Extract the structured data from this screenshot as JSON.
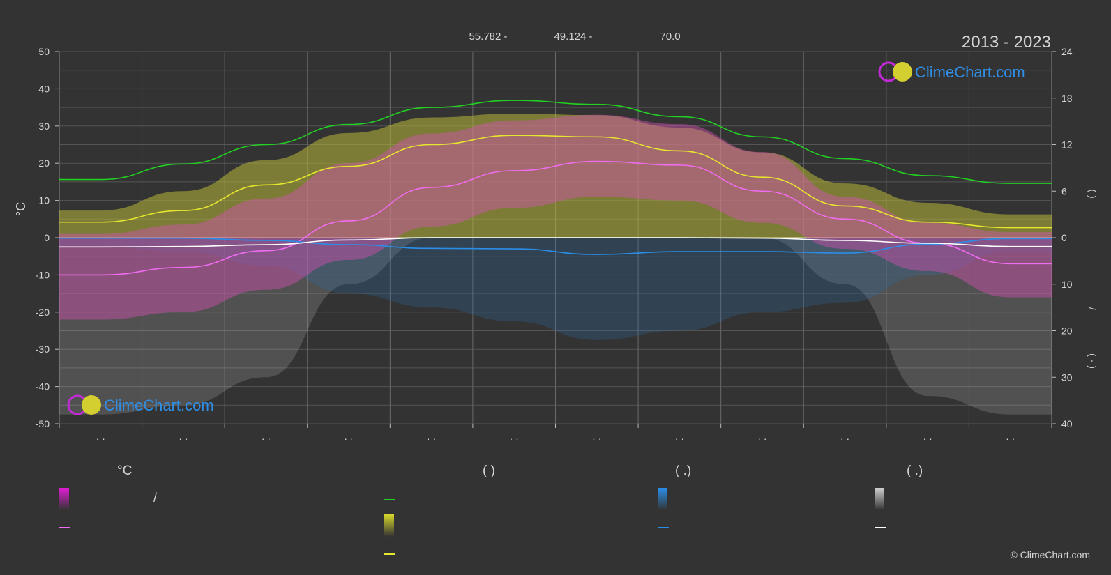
{
  "header": {
    "period": "2013 - 2023",
    "coords": [
      "55.782 -",
      "49.124 -",
      "70.0"
    ]
  },
  "brand": {
    "name": "ClimeChart.com",
    "copyright": "© ClimeChart.com"
  },
  "axes": {
    "left_label": "°C",
    "left_ticks": [
      "50",
      "40",
      "30",
      "20",
      "10",
      "0",
      "-10",
      "-20",
      "-30",
      "-40",
      "-50"
    ],
    "right_top_ticks": [
      "24",
      "18",
      "12",
      "6",
      "0"
    ],
    "right_bottom_ticks": [
      "10",
      "20",
      "30",
      "40"
    ],
    "right_top_label": "(   )",
    "right_mid_label": "/",
    "right_bottom_label": "( · )",
    "month_labels": [
      "· ·",
      "· ·",
      "· ·",
      "· ·",
      "· ·",
      "· ·",
      "· ·",
      "· ·",
      "· ·",
      "· ·",
      "· ·",
      "· ·"
    ]
  },
  "legend": {
    "groups": [
      {
        "title": "°C",
        "items": [
          {
            "kind": "band",
            "color": "#e21cd6",
            "label": "/"
          },
          {
            "kind": "line",
            "color": "#f06cf0",
            "label": ""
          }
        ]
      },
      {
        "title": "(          )",
        "items": [
          {
            "kind": "line",
            "color": "#22d022",
            "label": ""
          },
          {
            "kind": "band",
            "color": "#d8d82a",
            "label": ""
          },
          {
            "kind": "line",
            "color": "#e6e62e",
            "label": ""
          }
        ]
      },
      {
        "title": "(   .)",
        "items": [
          {
            "kind": "band",
            "color": "#2a8ee8",
            "label": ""
          },
          {
            "kind": "line",
            "color": "#2a8ee8",
            "label": ""
          }
        ]
      },
      {
        "title": "(   .)",
        "items": [
          {
            "kind": "band",
            "color": "#d0d0d0",
            "label": ""
          },
          {
            "kind": "line",
            "color": "#ffffff",
            "label": ""
          }
        ]
      }
    ]
  },
  "chart_data": {
    "type": "line",
    "x_months": [
      1,
      2,
      3,
      4,
      5,
      6,
      7,
      8,
      9,
      10,
      11,
      12
    ],
    "ylim_left": [
      -50,
      50
    ],
    "ylim_right_top_hours": [
      0,
      24
    ],
    "ylim_right_bottom_mm": [
      0,
      40
    ],
    "grid": true,
    "series": [
      {
        "key": "daylight",
        "color": "#22d022",
        "axis": "hours",
        "values": [
          7.5,
          9.5,
          12.0,
          14.6,
          16.8,
          17.7,
          17.2,
          15.6,
          13.0,
          10.2,
          8.0,
          7.0
        ]
      },
      {
        "key": "sunshine",
        "color": "#e6e62e",
        "axis": "hours",
        "values": [
          2.0,
          3.5,
          6.8,
          9.2,
          12.0,
          13.2,
          13.0,
          11.2,
          7.8,
          4.1,
          2.0,
          1.3
        ]
      },
      {
        "key": "temp_mean",
        "color": "#f06cf0",
        "axis": "temp",
        "values": [
          -10,
          -8,
          -3.5,
          4.5,
          13.5,
          18.0,
          20.5,
          19.5,
          12.5,
          5.0,
          -1.5,
          -7.0
        ]
      },
      {
        "key": "rain_daily",
        "color": "#2a8ee8",
        "axis": "precip",
        "values": [
          0.1,
          0.1,
          0.6,
          1.5,
          2.3,
          2.4,
          3.6,
          3.0,
          3.0,
          3.3,
          1.4,
          0.2
        ]
      },
      {
        "key": "snow_daily",
        "color": "#ffffff",
        "axis": "precip",
        "values": [
          2.0,
          1.9,
          1.5,
          0.5,
          0.0,
          0.0,
          0.0,
          0.0,
          0.1,
          0.6,
          1.2,
          1.9
        ]
      }
    ],
    "bands": {
      "temp_max_top": [
        1.0,
        3.5,
        10.5,
        20.0,
        28.0,
        31.5,
        33.0,
        30.5,
        23.0,
        11.0,
        4.0,
        1.5
      ],
      "temp_min_bottom": [
        -22,
        -20,
        -14,
        -6,
        3,
        8,
        11,
        10,
        4,
        -3,
        -9,
        -16
      ],
      "sunshine_band_top": [
        3.5,
        6.0,
        10.0,
        13.5,
        15.5,
        16.0,
        15.8,
        14.2,
        11.0,
        7.0,
        4.5,
        3.0
      ],
      "rain_band_depth": [
        2,
        3,
        6,
        12,
        15,
        18,
        22,
        20,
        16,
        14,
        8,
        3
      ],
      "snow_band_depth": [
        38,
        36,
        30,
        10,
        0,
        0,
        0,
        0,
        0,
        10,
        34,
        38
      ]
    }
  }
}
